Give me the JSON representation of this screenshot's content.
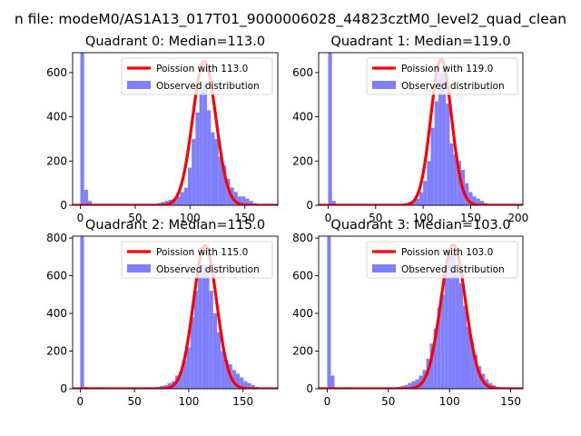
{
  "figure": {
    "suptitle": "n file: modeM0/AS1A13_017T01_9000006028_44823cztM0_level2_quad_clean"
  },
  "chart_data": [
    {
      "type": "bar",
      "title": "Quadrant 0: Median=113.0",
      "median": 113.0,
      "xlim": [
        -7,
        180
      ],
      "ylim": [
        0,
        690
      ],
      "xticks": [
        0,
        50,
        100,
        150
      ],
      "yticks": [
        0,
        200,
        400,
        600
      ],
      "bin_width": 3.5,
      "legend": {
        "placement": "top-right",
        "entries": [
          "Poission with 113.0",
          "Observed distribution"
        ]
      },
      "series": [
        {
          "name": "Poission with 113.0",
          "type": "line",
          "color": "#ff0000",
          "lambda": 113.0,
          "peak": 652,
          "sigma": 10.6
        },
        {
          "name": "Observed distribution",
          "type": "histogram",
          "color": "#8080ff",
          "bins": [
            [
              0,
              690
            ],
            [
              3.5,
              70
            ],
            [
              7,
              20
            ],
            [
              10.5,
              5
            ],
            [
              14,
              3
            ],
            [
              70,
              10
            ],
            [
              73.5,
              15
            ],
            [
              77,
              20
            ],
            [
              80.5,
              25
            ],
            [
              84,
              30
            ],
            [
              87.5,
              40
            ],
            [
              91,
              60
            ],
            [
              94.5,
              80
            ],
            [
              98,
              170
            ],
            [
              101.5,
              300
            ],
            [
              105,
              420
            ],
            [
              108.5,
              520
            ],
            [
              112,
              560
            ],
            [
              115.5,
              430
            ],
            [
              119,
              330
            ],
            [
              122.5,
              300
            ],
            [
              126,
              220
            ],
            [
              129.5,
              180
            ],
            [
              133,
              120
            ],
            [
              136.5,
              80
            ],
            [
              140,
              60
            ],
            [
              143.5,
              40
            ],
            [
              147,
              40
            ],
            [
              150.5,
              30
            ],
            [
              154,
              20
            ],
            [
              157.5,
              10
            ],
            [
              161,
              5
            ]
          ]
        }
      ]
    },
    {
      "type": "bar",
      "title": "Quadrant 1: Median=119.0",
      "median": 119.0,
      "xlim": [
        -10,
        205
      ],
      "ylim": [
        0,
        690
      ],
      "xticks": [
        0,
        50,
        100,
        150,
        200
      ],
      "yticks": [
        0,
        200,
        400,
        600
      ],
      "bin_width": 4,
      "legend": {
        "placement": "top-right",
        "entries": [
          "Poission with 119.0",
          "Observed distribution"
        ]
      },
      "series": [
        {
          "name": "Poission with 119.0",
          "type": "line",
          "color": "#ff0000",
          "lambda": 119.0,
          "peak": 660,
          "sigma": 10.9
        },
        {
          "name": "Observed distribution",
          "type": "histogram",
          "color": "#8080ff",
          "bins": [
            [
              0,
              690
            ],
            [
              4,
              20
            ],
            [
              8,
              5
            ],
            [
              80,
              10
            ],
            [
              84,
              15
            ],
            [
              88,
              20
            ],
            [
              92,
              30
            ],
            [
              96,
              60
            ],
            [
              100,
              110
            ],
            [
              104,
              200
            ],
            [
              108,
              350
            ],
            [
              112,
              470
            ],
            [
              116,
              600
            ],
            [
              120,
              640
            ],
            [
              124,
              460
            ],
            [
              128,
              280
            ],
            [
              132,
              230
            ],
            [
              136,
              200
            ],
            [
              140,
              160
            ],
            [
              144,
              100
            ],
            [
              148,
              60
            ],
            [
              152,
              40
            ],
            [
              156,
              30
            ],
            [
              160,
              20
            ],
            [
              164,
              10
            ],
            [
              168,
              5
            ]
          ]
        }
      ]
    },
    {
      "type": "bar",
      "title": "Quadrant 2: Median=115.0",
      "median": 115.0,
      "xlim": [
        -7,
        182
      ],
      "ylim": [
        0,
        810
      ],
      "xticks": [
        0,
        50,
        100,
        150
      ],
      "yticks": [
        0,
        200,
        400,
        600,
        800
      ],
      "bin_width": 3.5,
      "legend": {
        "placement": "top-right",
        "entries": [
          "Poission with 115.0",
          "Observed distribution"
        ]
      },
      "series": [
        {
          "name": "Poission with 115.0",
          "type": "line",
          "color": "#ff0000",
          "lambda": 115.0,
          "peak": 760,
          "sigma": 10.7
        },
        {
          "name": "Observed distribution",
          "type": "histogram",
          "color": "#8080ff",
          "bins": [
            [
              0,
              810
            ],
            [
              3.5,
              10
            ],
            [
              70,
              10
            ],
            [
              73.5,
              15
            ],
            [
              77,
              20
            ],
            [
              80.5,
              30
            ],
            [
              84,
              40
            ],
            [
              87.5,
              70
            ],
            [
              91,
              90
            ],
            [
              94.5,
              150
            ],
            [
              98,
              220
            ],
            [
              101.5,
              380
            ],
            [
              105,
              520
            ],
            [
              108.5,
              620
            ],
            [
              112,
              660
            ],
            [
              115.5,
              640
            ],
            [
              119,
              520
            ],
            [
              122.5,
              400
            ],
            [
              126,
              300
            ],
            [
              129.5,
              200
            ],
            [
              133,
              150
            ],
            [
              136.5,
              130
            ],
            [
              140,
              100
            ],
            [
              143.5,
              80
            ],
            [
              147,
              60
            ],
            [
              150.5,
              40
            ],
            [
              154,
              30
            ],
            [
              157.5,
              20
            ],
            [
              161,
              10
            ],
            [
              164.5,
              5
            ]
          ]
        }
      ]
    },
    {
      "type": "bar",
      "title": "Quadrant 3: Median=103.0",
      "median": 103.0,
      "xlim": [
        -7,
        160
      ],
      "ylim": [
        0,
        810
      ],
      "xticks": [
        0,
        50,
        100,
        150
      ],
      "yticks": [
        0,
        200,
        400,
        600,
        800
      ],
      "bin_width": 3,
      "legend": {
        "placement": "top-right",
        "entries": [
          "Poission with 103.0",
          "Observed distribution"
        ]
      },
      "series": [
        {
          "name": "Poission with 103.0",
          "type": "line",
          "color": "#ff0000",
          "lambda": 103.0,
          "peak": 765,
          "sigma": 10.1
        },
        {
          "name": "Observed distribution",
          "type": "histogram",
          "color": "#8080ff",
          "bins": [
            [
              0,
              810
            ],
            [
              3,
              70
            ],
            [
              6,
              5
            ],
            [
              57,
              10
            ],
            [
              60,
              15
            ],
            [
              63,
              20
            ],
            [
              66,
              30
            ],
            [
              69,
              40
            ],
            [
              72,
              50
            ],
            [
              75,
              70
            ],
            [
              78,
              100
            ],
            [
              81,
              160
            ],
            [
              84,
              240
            ],
            [
              87,
              320
            ],
            [
              90,
              430
            ],
            [
              93,
              500
            ],
            [
              96,
              620
            ],
            [
              99,
              720
            ],
            [
              102,
              720
            ],
            [
              105,
              620
            ],
            [
              108,
              560
            ],
            [
              111,
              440
            ],
            [
              114,
              330
            ],
            [
              117,
              250
            ],
            [
              120,
              180
            ],
            [
              123,
              120
            ],
            [
              126,
              80
            ],
            [
              129,
              50
            ],
            [
              132,
              30
            ],
            [
              135,
              20
            ],
            [
              138,
              10
            ],
            [
              141,
              5
            ]
          ]
        }
      ]
    }
  ]
}
